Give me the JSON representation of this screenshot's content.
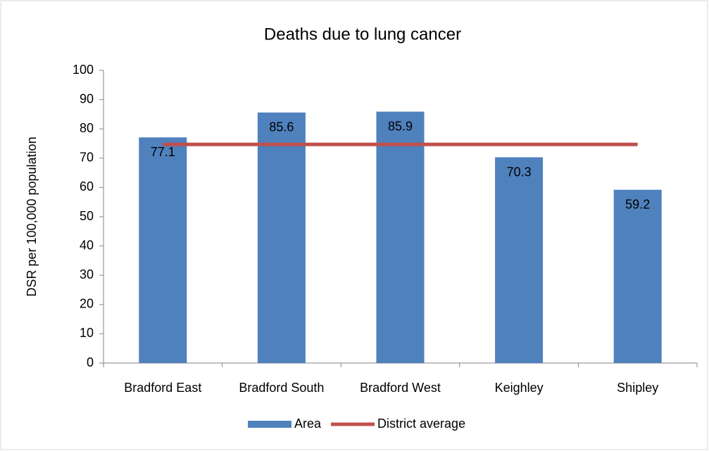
{
  "chart_data": {
    "type": "bar",
    "title": "Deaths due to lung cancer",
    "y_label": "DSR per 100,000 population",
    "categories": [
      "Bradford East",
      "Bradford South",
      "Bradford West",
      "Keighley",
      "Shipley"
    ],
    "series": [
      {
        "name": "Area",
        "type": "bar",
        "color": "#4f81bd",
        "values": [
          77.1,
          85.6,
          85.9,
          70.3,
          59.2
        ]
      },
      {
        "name": "District average",
        "type": "line",
        "color": "#c0504d",
        "values": [
          74.7,
          74.7,
          74.7,
          74.7,
          74.7
        ]
      }
    ],
    "ylim": [
      0,
      100
    ],
    "yticks": [
      0,
      10,
      20,
      30,
      40,
      50,
      60,
      70,
      80,
      90,
      100
    ],
    "grid": false,
    "legend": "bottom"
  }
}
